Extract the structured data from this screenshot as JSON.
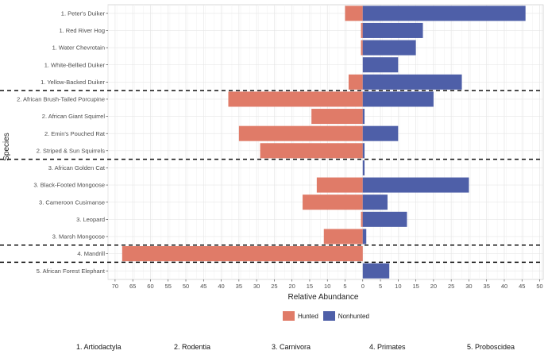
{
  "chart_data": {
    "type": "bar",
    "orientation": "horizontal-diverging",
    "ylabel": "Species",
    "xlabel": "Relative Abundance",
    "xlim": [
      -72,
      51
    ],
    "x_ticks": [
      -70,
      -65,
      -60,
      -55,
      -50,
      -45,
      -40,
      -35,
      -30,
      -25,
      -20,
      -15,
      -10,
      -5,
      0,
      5,
      10,
      15,
      20,
      25,
      30,
      35,
      40,
      45,
      50
    ],
    "x_tick_labels": [
      "70",
      "65",
      "60",
      "55",
      "50",
      "45",
      "40",
      "35",
      "30",
      "25",
      "20",
      "15",
      "10",
      "5",
      "0",
      "5",
      "10",
      "15",
      "20",
      "25",
      "30",
      "35",
      "40",
      "45",
      "50"
    ],
    "categories": [
      "1. Peter's Duiker",
      "1. Red River Hog",
      "1. Water Chevrotain",
      "1. White-Bellied Duiker",
      "1. Yellow-Backed Duiker",
      "2. African Brush-Tailed Porcupine",
      "2. African Giant Squirrel",
      "2. Emin's Pouched Rat",
      "2. Striped & Sun Squirrels",
      "3. African Golden Cat",
      "3. Black-Footed Mongoose",
      "3. Cameroon Cusimanse",
      "3. Leopard",
      "3. Marsh Mongoose",
      "4. Mandrill",
      "5. African Forest Elephant"
    ],
    "series": [
      {
        "name": "Hunted",
        "color": "#e07b68",
        "values": [
          5,
          0.5,
          0.5,
          0,
          4,
          38,
          14.5,
          35,
          29,
          0,
          13,
          17,
          0.5,
          11,
          68,
          0
        ]
      },
      {
        "name": "Nonhunted",
        "color": "#4e5fa8",
        "values": [
          46,
          17,
          15,
          10,
          28,
          20,
          0.5,
          10,
          0.5,
          0.5,
          30,
          7,
          12.5,
          1,
          0,
          7.5
        ]
      }
    ],
    "group_separators_after_index": [
      4,
      8,
      13,
      14
    ],
    "legend": {
      "placement": "bottom",
      "items": [
        "Hunted",
        "Nonhunted"
      ]
    },
    "orders": [
      "1. Artiodactyla",
      "2. Rodentia",
      "3. Carnivora",
      "4. Primates",
      "5. Proboscidea"
    ]
  }
}
